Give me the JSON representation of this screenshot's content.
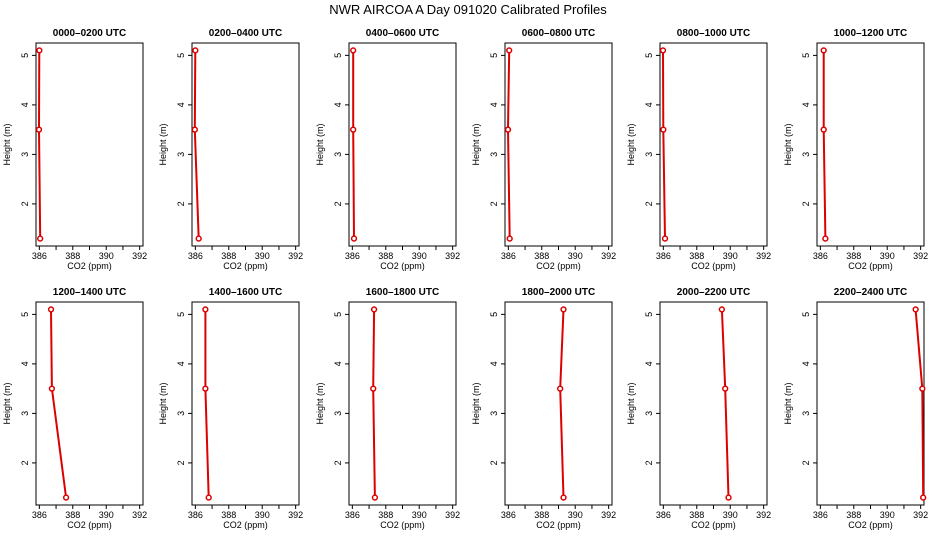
{
  "page_title": "NWR AIRCOA A  Day 091020  Calibrated Profiles",
  "chart_data": [
    {
      "type": "line",
      "title": "0000–0200 UTC",
      "xlabel": "CO2 (ppm)",
      "ylabel": "Height (m)",
      "xlim": [
        385.8,
        392.2
      ],
      "ylim": [
        1.15,
        5.25
      ],
      "xticks": [
        "386",
        "388",
        "390",
        "392"
      ],
      "yticks": [
        "2",
        "3",
        "4",
        "5"
      ],
      "series": [
        {
          "x": [
            386.0,
            385.98,
            386.05
          ],
          "y": [
            5.1,
            3.5,
            1.3
          ]
        }
      ]
    },
    {
      "type": "line",
      "title": "0200–0400 UTC",
      "xlabel": "CO2 (ppm)",
      "ylabel": "Height (m)",
      "xlim": [
        385.8,
        392.2
      ],
      "ylim": [
        1.15,
        5.25
      ],
      "xticks": [
        "386",
        "388",
        "390",
        "392"
      ],
      "yticks": [
        "2",
        "3",
        "4",
        "5"
      ],
      "series": [
        {
          "x": [
            386.0,
            385.97,
            386.2
          ],
          "y": [
            5.1,
            3.5,
            1.3
          ]
        }
      ]
    },
    {
      "type": "line",
      "title": "0400–0600 UTC",
      "xlabel": "CO2 (ppm)",
      "ylabel": "Height (m)",
      "xlim": [
        385.8,
        392.2
      ],
      "ylim": [
        1.15,
        5.25
      ],
      "xticks": [
        "386",
        "388",
        "390",
        "392"
      ],
      "yticks": [
        "2",
        "3",
        "4",
        "5"
      ],
      "series": [
        {
          "x": [
            386.05,
            386.05,
            386.1
          ],
          "y": [
            5.1,
            3.5,
            1.3
          ]
        }
      ]
    },
    {
      "type": "line",
      "title": "0600–0800 UTC",
      "xlabel": "CO2 (ppm)",
      "ylabel": "Height (m)",
      "xlim": [
        385.8,
        392.2
      ],
      "ylim": [
        1.15,
        5.25
      ],
      "xticks": [
        "386",
        "388",
        "390",
        "392"
      ],
      "yticks": [
        "2",
        "3",
        "4",
        "5"
      ],
      "series": [
        {
          "x": [
            386.05,
            385.98,
            386.08
          ],
          "y": [
            5.1,
            3.5,
            1.3
          ]
        }
      ]
    },
    {
      "type": "line",
      "title": "0800–1000 UTC",
      "xlabel": "CO2 (ppm)",
      "ylabel": "Height (m)",
      "xlim": [
        385.8,
        392.2
      ],
      "ylim": [
        1.15,
        5.25
      ],
      "xticks": [
        "386",
        "388",
        "390",
        "392"
      ],
      "yticks": [
        "2",
        "3",
        "4",
        "5"
      ],
      "series": [
        {
          "x": [
            385.98,
            386.0,
            386.1
          ],
          "y": [
            5.1,
            3.5,
            1.3
          ]
        }
      ]
    },
    {
      "type": "line",
      "title": "1000–1200 UTC",
      "xlabel": "CO2 (ppm)",
      "ylabel": "Height (m)",
      "xlim": [
        385.8,
        392.2
      ],
      "ylim": [
        1.15,
        5.25
      ],
      "xticks": [
        "386",
        "388",
        "390",
        "392"
      ],
      "yticks": [
        "2",
        "3",
        "4",
        "5"
      ],
      "series": [
        {
          "x": [
            386.2,
            386.2,
            386.3
          ],
          "y": [
            5.1,
            3.5,
            1.3
          ]
        }
      ]
    },
    {
      "type": "line",
      "title": "1200–1400 UTC",
      "xlabel": "CO2 (ppm)",
      "ylabel": "Height (m)",
      "xlim": [
        385.8,
        392.2
      ],
      "ylim": [
        1.15,
        5.25
      ],
      "xticks": [
        "386",
        "388",
        "390",
        "392"
      ],
      "yticks": [
        "2",
        "3",
        "4",
        "5"
      ],
      "series": [
        {
          "x": [
            386.7,
            386.75,
            387.6
          ],
          "y": [
            5.1,
            3.5,
            1.3
          ]
        }
      ]
    },
    {
      "type": "line",
      "title": "1400–1600 UTC",
      "xlabel": "CO2 (ppm)",
      "ylabel": "Height (m)",
      "xlim": [
        385.8,
        392.2
      ],
      "ylim": [
        1.15,
        5.25
      ],
      "xticks": [
        "386",
        "388",
        "390",
        "392"
      ],
      "yticks": [
        "2",
        "3",
        "4",
        "5"
      ],
      "series": [
        {
          "x": [
            386.6,
            386.6,
            386.8
          ],
          "y": [
            5.1,
            3.5,
            1.3
          ]
        }
      ]
    },
    {
      "type": "line",
      "title": "1600–1800 UTC",
      "xlabel": "CO2 (ppm)",
      "ylabel": "Height (m)",
      "xlim": [
        385.8,
        392.2
      ],
      "ylim": [
        1.15,
        5.25
      ],
      "xticks": [
        "386",
        "388",
        "390",
        "392"
      ],
      "yticks": [
        "2",
        "3",
        "4",
        "5"
      ],
      "series": [
        {
          "x": [
            387.3,
            387.25,
            387.35
          ],
          "y": [
            5.1,
            3.5,
            1.3
          ]
        }
      ]
    },
    {
      "type": "line",
      "title": "1800–2000 UTC",
      "xlabel": "CO2 (ppm)",
      "ylabel": "Height (m)",
      "xlim": [
        385.8,
        392.2
      ],
      "ylim": [
        1.15,
        5.25
      ],
      "xticks": [
        "386",
        "388",
        "390",
        "392"
      ],
      "yticks": [
        "2",
        "3",
        "4",
        "5"
      ],
      "series": [
        {
          "x": [
            389.3,
            389.1,
            389.3
          ],
          "y": [
            5.1,
            3.5,
            1.3
          ]
        }
      ]
    },
    {
      "type": "line",
      "title": "2000–2200 UTC",
      "xlabel": "CO2 (ppm)",
      "ylabel": "Height (m)",
      "xlim": [
        385.8,
        392.2
      ],
      "ylim": [
        1.15,
        5.25
      ],
      "xticks": [
        "386",
        "388",
        "390",
        "392"
      ],
      "yticks": [
        "2",
        "3",
        "4",
        "5"
      ],
      "series": [
        {
          "x": [
            389.5,
            389.7,
            389.9
          ],
          "y": [
            5.1,
            3.5,
            1.3
          ]
        }
      ]
    },
    {
      "type": "line",
      "title": "2200–2400 UTC",
      "xlabel": "CO2 (ppm)",
      "ylabel": "Height (m)",
      "xlim": [
        385.8,
        392.2
      ],
      "ylim": [
        1.15,
        5.25
      ],
      "xticks": [
        "386",
        "388",
        "390",
        "392"
      ],
      "yticks": [
        "2",
        "3",
        "4",
        "5"
      ],
      "series": [
        {
          "x": [
            391.7,
            392.1,
            392.15
          ],
          "y": [
            5.1,
            3.5,
            1.3
          ]
        }
      ]
    }
  ],
  "colors": {
    "series": "#dd0000",
    "marker_fill": "#ffffff",
    "axes": "#000000"
  }
}
